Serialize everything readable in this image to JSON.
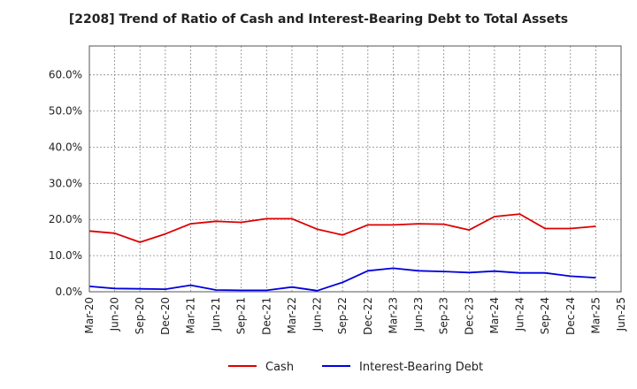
{
  "chart_data": {
    "type": "line",
    "title": "[2208]  Trend of Ratio of Cash and Interest-Bearing Debt to Total Assets",
    "xlabel": "",
    "ylabel": "",
    "categories": [
      "Mar-20",
      "Jun-20",
      "Sep-20",
      "Dec-20",
      "Mar-21",
      "Jun-21",
      "Sep-21",
      "Dec-21",
      "Mar-22",
      "Jun-22",
      "Sep-22",
      "Dec-22",
      "Mar-23",
      "Jun-23",
      "Sep-23",
      "Dec-23",
      "Mar-24",
      "Jun-24",
      "Sep-24",
      "Dec-24",
      "Mar-25",
      "Jun-25"
    ],
    "y_ticks": [
      "0.0%",
      "10.0%",
      "20.0%",
      "30.0%",
      "40.0%",
      "50.0%",
      "60.0%"
    ],
    "ylim": [
      0,
      68
    ],
    "grid": true,
    "legend_position": "bottom",
    "series": [
      {
        "name": "Cash",
        "color": "#dd0000",
        "values": [
          16.8,
          16.2,
          13.7,
          16.0,
          18.8,
          19.5,
          19.2,
          20.2,
          20.2,
          17.3,
          15.7,
          18.5,
          18.5,
          18.8,
          18.7,
          17.1,
          20.8,
          21.5,
          17.5,
          17.5,
          18.1,
          null
        ]
      },
      {
        "name": "Interest-Bearing Debt",
        "color": "#0000dd",
        "values": [
          1.5,
          0.9,
          0.8,
          0.7,
          1.8,
          0.5,
          0.4,
          0.4,
          1.3,
          0.3,
          2.6,
          5.8,
          6.5,
          5.8,
          5.6,
          5.3,
          5.7,
          5.2,
          5.2,
          4.3,
          3.9,
          null
        ]
      }
    ]
  }
}
